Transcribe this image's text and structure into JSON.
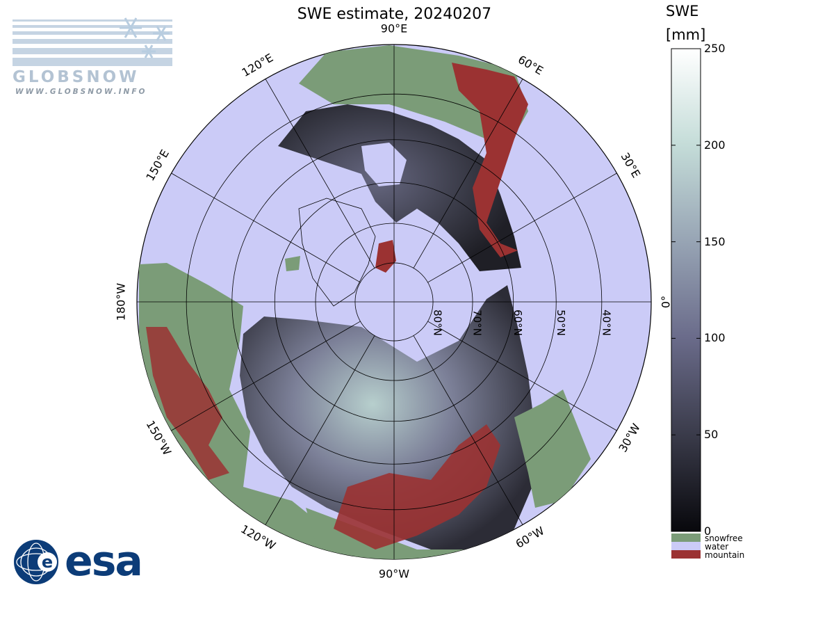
{
  "title": "SWE estimate, 20240207",
  "logos": {
    "globsnow_text": "GLOBSNOW",
    "globsnow_url": "WWW.GLOBSNOW.INFO",
    "esa_text": "esa"
  },
  "colorbar": {
    "title": "SWE",
    "unit": "[mm]",
    "range": [
      0,
      250
    ],
    "ticks": [
      "250",
      "200",
      "150",
      "100",
      "50",
      "0"
    ],
    "tick_values": [
      250,
      200,
      150,
      100,
      50,
      0
    ],
    "gradient_stops": [
      "#08080c",
      "#3a3b4a",
      "#6a6b8a",
      "#97a4b4",
      "#c4dcd8",
      "#ffffff"
    ],
    "categories": [
      {
        "label": "snowfree",
        "color": "#7b9c78"
      },
      {
        "label": "water",
        "color": "#cbcbf7"
      },
      {
        "label": "mountain",
        "color": "#9b3232"
      }
    ]
  },
  "map": {
    "projection": "north polar stereographic",
    "lon_labels": [
      "90°W",
      "120°W",
      "150°W",
      "180°W",
      "150°E",
      "120°E",
      "90°E",
      "60°E",
      "30°E",
      "0°",
      "30°W",
      "60°W"
    ],
    "lat_labels": [
      "80°N",
      "70°N",
      "60°N",
      "50°N",
      "40°N"
    ],
    "colors": {
      "water": "#cbcbf7",
      "snowfree": "#7b9c78",
      "mountain": "#9b3232",
      "snow_low": "#26262e",
      "snow_mid": "#5e6079",
      "snow_high": "#bed4d2"
    }
  }
}
